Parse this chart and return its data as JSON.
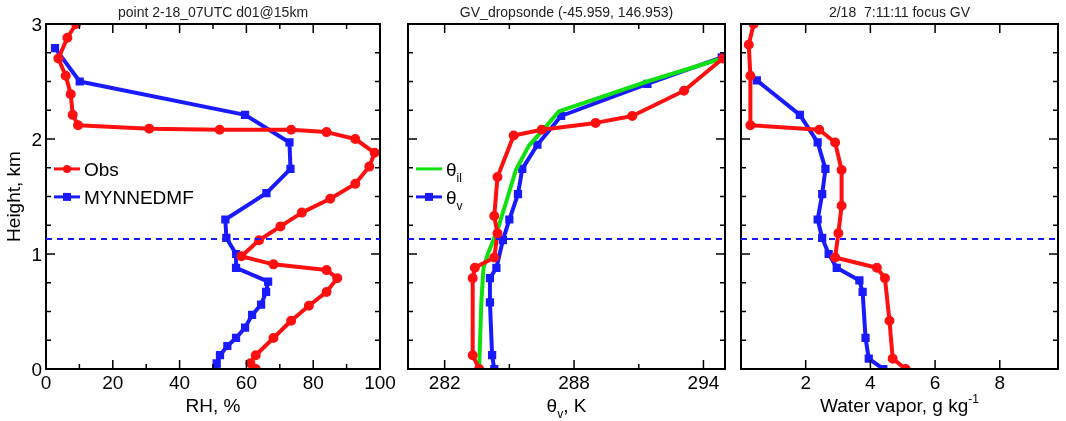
{
  "chart_data": [
    {
      "type": "line",
      "title": "point 2-18_07UTC d01@15km",
      "xlabel": "RH, %",
      "ylabel": "Height, km",
      "xlim": [
        0,
        100
      ],
      "ylim": [
        0,
        3
      ],
      "xticks": [
        0,
        {
          "value": 10,
          "label": null
        },
        20,
        {
          "value": 30,
          "label": null
        },
        40,
        {
          "value": 50,
          "label": null
        },
        60,
        {
          "value": 70,
          "label": null
        },
        80,
        {
          "value": 90,
          "label": null
        },
        100
      ],
      "yticks": [
        0,
        {
          "value": 0.25,
          "label": null
        },
        {
          "value": 0.5,
          "label": null
        },
        {
          "value": 0.75,
          "label": null
        },
        1,
        {
          "value": 1.25,
          "label": null
        },
        {
          "value": 1.5,
          "label": null
        },
        {
          "value": 1.75,
          "label": null
        },
        2,
        {
          "value": 2.25,
          "label": null
        },
        {
          "value": 2.5,
          "label": null
        },
        {
          "value": 2.75,
          "label": null
        },
        3
      ],
      "legend": "left",
      "grid": false,
      "ref_lines": [
        {
          "axis": "y",
          "value": 1.13,
          "color": "#1a1aff",
          "line_style": "dashed"
        }
      ],
      "series": [
        {
          "name": "Obs",
          "color": "#ff1010",
          "marker": "circle",
          "x": [
            9.0,
            6.4,
            3.7,
            5.9,
            7.4,
            8.0,
            9.6,
            30.9,
            52,
            73.4,
            84,
            92.6,
            98.4,
            96.8,
            92.6,
            85.1,
            76.6,
            70.2,
            63.8,
            58.5,
            68.1,
            84,
            87.2,
            84,
            78.7,
            73.4,
            68.1,
            62.8,
            61.2,
            62.8
          ],
          "values": [
            3.0,
            2.88,
            2.7,
            2.55,
            2.39,
            2.21,
            2.12,
            2.09,
            2.08,
            2.08,
            2.06,
            2.0,
            1.88,
            1.76,
            1.61,
            1.48,
            1.36,
            1.24,
            1.12,
            0.98,
            0.91,
            0.86,
            0.79,
            0.67,
            0.55,
            0.42,
            0.27,
            0.12,
            0.05,
            0
          ]
        },
        {
          "name": "MYNNEDMF",
          "color": "#1a1aff",
          "marker": "square",
          "x": [
            2.7,
            10.1,
            59.6,
            72.9,
            73.2,
            66.0,
            53.7,
            54.0,
            56.9,
            56.9,
            66.5,
            65.9,
            64.4,
            61.7,
            59.6,
            56.9,
            54.3,
            52.1,
            51.1,
            51
          ],
          "values": [
            2.79,
            2.5,
            2.21,
            1.97,
            1.74,
            1.53,
            1.3,
            1.14,
            1.0,
            0.88,
            0.76,
            0.67,
            0.56,
            0.47,
            0.36,
            0.27,
            0.2,
            0.12,
            0.05,
            0
          ]
        }
      ]
    },
    {
      "type": "line",
      "title": "GV_dropsonde (-45.959, 146.953)",
      "xlabel": "θ$_{v}$, K",
      "xlim": [
        280.3,
        295
      ],
      "ylim": [
        0,
        3
      ],
      "xticks": [
        282,
        {
          "value": 285,
          "label": null
        },
        288,
        {
          "value": 291,
          "label": null
        },
        294
      ],
      "yticks": [
        0,
        {
          "value": 0.25,
          "label": null
        },
        {
          "value": 0.5,
          "label": null
        },
        {
          "value": 0.75,
          "label": null
        },
        1,
        {
          "value": 1.25,
          "label": null
        },
        {
          "value": 1.5,
          "label": null
        },
        {
          "value": 1.75,
          "label": null
        },
        2,
        {
          "value": 2.25,
          "label": null
        },
        {
          "value": 2.5,
          "label": null
        },
        {
          "value": 2.75,
          "label": null
        },
        3
      ],
      "tick_labels": "x",
      "legend": "left",
      "grid": false,
      "ref_lines": [
        {
          "axis": "y",
          "value": 1.13,
          "color": "#1a1aff",
          "line_style": "dashed"
        }
      ],
      "series": [
        {
          "color": "#ff1010",
          "marker": "circle",
          "x": [
            294.9,
            293.1,
            290.7,
            289.0,
            286.5,
            285.2,
            284.45,
            284.3,
            284.45,
            284.3,
            283.4,
            283.3,
            283.3,
            283.6
          ],
          "values": [
            2.7,
            2.42,
            2.2,
            2.14,
            2.08,
            2.03,
            1.67,
            1.33,
            1.18,
            0.97,
            0.88,
            0.79,
            0.12,
            0
          ]
        },
        {
          "name": "θ$_{il}$",
          "color": "#10e010",
          "marker": "none",
          "x": [
            294.85,
            291.4,
            287.3,
            286.7,
            285.9,
            285.3,
            284.9,
            284.45,
            284.0,
            283.8,
            283.7,
            283.6
          ],
          "values": [
            2.7,
            2.5,
            2.24,
            2.11,
            1.94,
            1.73,
            1.48,
            1.21,
            1.0,
            0.88,
            0.58,
            0
          ]
        },
        {
          "name": "θ$_{v}$",
          "color": "#1a1aff",
          "marker": "square",
          "x": [
            294.85,
            291.4,
            287.4,
            286.3,
            285.6,
            285.4,
            285.0,
            284.7,
            284.4,
            284.1,
            284.1,
            284.2,
            284.3
          ],
          "values": [
            2.71,
            2.48,
            2.2,
            1.95,
            1.74,
            1.52,
            1.3,
            1.12,
            0.88,
            0.79,
            0.58,
            0.12,
            0
          ]
        }
      ]
    },
    {
      "type": "line",
      "title": "2/18  7:11:11 focus GV",
      "xlabel": "Water vapor, g kg$^{-1}$",
      "xlim": [
        0,
        9.8
      ],
      "ylim": [
        0,
        3
      ],
      "xticks": [
        2,
        4,
        6,
        8
      ],
      "yticks": [
        0,
        {
          "value": 0.25,
          "label": null
        },
        {
          "value": 0.5,
          "label": null
        },
        {
          "value": 0.75,
          "label": null
        },
        1,
        {
          "value": 1.25,
          "label": null
        },
        {
          "value": 1.5,
          "label": null
        },
        {
          "value": 1.75,
          "label": null
        },
        2,
        {
          "value": 2.25,
          "label": null
        },
        {
          "value": 2.5,
          "label": null
        },
        {
          "value": 2.75,
          "label": null
        },
        3
      ],
      "tick_labels": "x",
      "grid": false,
      "ref_lines": [
        {
          "axis": "y",
          "value": 1.13,
          "color": "#1a1aff",
          "line_style": "dashed"
        }
      ],
      "series": [
        {
          "color": "#ff1010",
          "marker": "circle",
          "x": [
            0.39,
            0.24,
            0.29,
            0.29,
            2.42,
            2.91,
            3.11,
            3.11,
            3.01,
            2.91,
            4.2,
            4.45,
            4.59,
            4.69,
            5.09
          ],
          "values": [
            3.0,
            2.82,
            2.55,
            2.12,
            2.08,
            1.97,
            1.73,
            1.42,
            1.18,
            0.97,
            0.88,
            0.79,
            0.42,
            0.09,
            0
          ]
        },
        {
          "color": "#1a1aff",
          "marker": "square",
          "x": [
            0.49,
            1.82,
            2.37,
            2.61,
            2.51,
            2.37,
            2.51,
            2.71,
            2.96,
            3.66,
            3.76,
            3.85,
            3.95,
            4.4
          ],
          "values": [
            2.51,
            2.21,
            1.97,
            1.74,
            1.52,
            1.3,
            1.14,
            1.0,
            0.88,
            0.77,
            0.67,
            0.27,
            0.09,
            0
          ]
        }
      ]
    }
  ]
}
